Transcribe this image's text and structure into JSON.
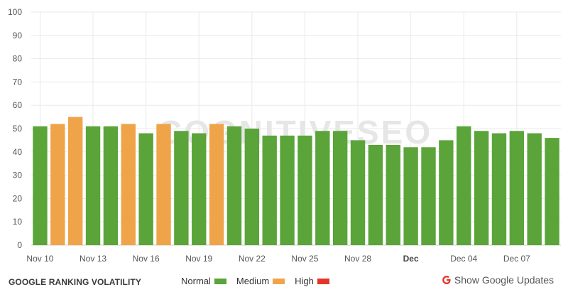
{
  "chart_data": {
    "type": "bar",
    "title": "",
    "xlabel": "",
    "ylabel": "",
    "ylim": [
      0,
      100
    ],
    "y_ticks": [
      0,
      10,
      20,
      30,
      40,
      50,
      60,
      70,
      80,
      90,
      100
    ],
    "grid": true,
    "watermark": "COGNITIVESEO",
    "x_tick_labels": [
      {
        "index": 0,
        "label": "Nov 10",
        "bold": false
      },
      {
        "index": 3,
        "label": "Nov 13",
        "bold": false
      },
      {
        "index": 6,
        "label": "Nov 16",
        "bold": false
      },
      {
        "index": 9,
        "label": "Nov 19",
        "bold": false
      },
      {
        "index": 12,
        "label": "Nov 22",
        "bold": false
      },
      {
        "index": 15,
        "label": "Nov 25",
        "bold": false
      },
      {
        "index": 18,
        "label": "Nov 28",
        "bold": false
      },
      {
        "index": 21,
        "label": "Dec",
        "bold": true
      },
      {
        "index": 24,
        "label": "Dec 04",
        "bold": false
      },
      {
        "index": 27,
        "label": "Dec 07",
        "bold": false
      }
    ],
    "values": [
      51,
      52,
      55,
      51,
      51,
      52,
      48,
      52,
      49,
      48,
      52,
      51,
      50,
      47,
      47,
      47,
      49,
      49,
      45,
      43,
      43,
      42,
      42,
      45,
      51,
      49,
      48,
      49,
      48,
      46
    ],
    "levels": [
      "normal",
      "medium",
      "medium",
      "normal",
      "normal",
      "medium",
      "normal",
      "medium",
      "normal",
      "normal",
      "medium",
      "normal",
      "normal",
      "normal",
      "normal",
      "normal",
      "normal",
      "normal",
      "normal",
      "normal",
      "normal",
      "normal",
      "normal",
      "normal",
      "normal",
      "normal",
      "normal",
      "normal",
      "normal",
      "normal"
    ],
    "level_colors": {
      "normal": "#5aa43a",
      "medium": "#f0a44a",
      "high": "#e5352b"
    }
  },
  "footer": {
    "title": "GOOGLE RANKING VOLATILITY",
    "legend": [
      {
        "label": "Normal",
        "level": "normal"
      },
      {
        "label": "Medium",
        "level": "medium"
      },
      {
        "label": "High",
        "level": "high"
      }
    ],
    "updates_label": "Show Google Updates",
    "updates_icon": "google-g-icon"
  }
}
